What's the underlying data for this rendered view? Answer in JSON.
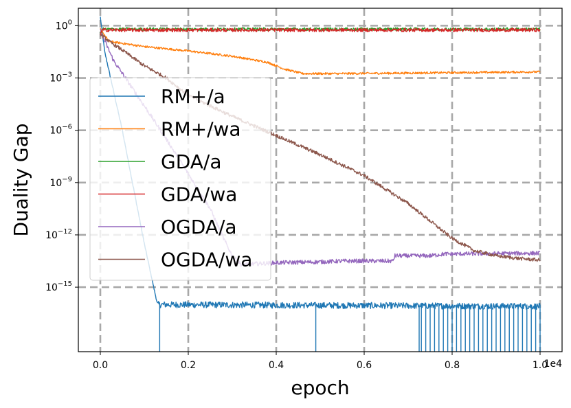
{
  "chart_data": {
    "type": "line",
    "xlabel": "epoch",
    "ylabel": "Duality Gap",
    "x_scale_note": "1e4",
    "xlim": [
      -0.05,
      1.05
    ],
    "ylim_log10": [
      -18.7,
      1.0
    ],
    "x_ticks": [
      0.0,
      0.2,
      0.4,
      0.6,
      0.8,
      1.0
    ],
    "x_tick_labels": [
      "0.0",
      "0.2",
      "0.4",
      "0.6",
      "0.8",
      "1.0"
    ],
    "y_ticks_log10": [
      0,
      -3,
      -6,
      -9,
      -12,
      -15
    ],
    "y_tick_labels": [
      {
        "base": "10",
        "exp": "0"
      },
      {
        "base": "10",
        "exp": "−3"
      },
      {
        "base": "10",
        "exp": "−6"
      },
      {
        "base": "10",
        "exp": "−9"
      },
      {
        "base": "10",
        "exp": "−12"
      },
      {
        "base": "10",
        "exp": "−15"
      }
    ],
    "grid": true,
    "legend_position": "center-left",
    "series": [
      {
        "name": "RM+/a",
        "color": "#1f77b4",
        "noise": 0.18,
        "points": [
          [
            0.0,
            0.5
          ],
          [
            0.01,
            -1.5
          ],
          [
            0.05,
            -6.0
          ],
          [
            0.1,
            -12.5
          ],
          [
            0.13,
            -16.0
          ],
          [
            0.135,
            -16.0
          ],
          [
            1.0,
            -16.1
          ]
        ],
        "dips_x": [
          0.135,
          0.49,
          0.725,
          0.73,
          0.74,
          0.75,
          0.76,
          0.77,
          0.78,
          0.79,
          0.8,
          0.81,
          0.82,
          0.83,
          0.84,
          0.85,
          0.86,
          0.87,
          0.88,
          0.89,
          0.9,
          0.91,
          0.92,
          0.93,
          0.94,
          0.95,
          0.96,
          0.97,
          0.98,
          0.99,
          1.0
        ]
      },
      {
        "name": "RM+/wa",
        "color": "#ff7f0e",
        "noise": 0.06,
        "points": [
          [
            0.0,
            -0.2
          ],
          [
            0.02,
            -0.9
          ],
          [
            0.1,
            -1.2
          ],
          [
            0.2,
            -1.45
          ],
          [
            0.3,
            -1.75
          ],
          [
            0.38,
            -2.1
          ],
          [
            0.42,
            -2.5
          ],
          [
            0.46,
            -2.75
          ],
          [
            0.55,
            -2.75
          ],
          [
            1.0,
            -2.65
          ]
        ]
      },
      {
        "name": "GDA/a",
        "color": "#2ca02c",
        "noise": 0.09,
        "points": [
          [
            0.0,
            -0.5
          ],
          [
            0.005,
            -0.2
          ],
          [
            1.0,
            -0.2
          ]
        ]
      },
      {
        "name": "GDA/wa",
        "color": "#d62728",
        "noise": 0.1,
        "points": [
          [
            0.0,
            -0.5
          ],
          [
            0.005,
            -0.25
          ],
          [
            1.0,
            -0.25
          ]
        ]
      },
      {
        "name": "OGDA/a",
        "color": "#9467bd",
        "noise": 0.12,
        "points": [
          [
            0.0,
            -0.3
          ],
          [
            0.03,
            -2.0
          ],
          [
            0.1,
            -4.6
          ],
          [
            0.15,
            -6.5
          ],
          [
            0.2,
            -8.5
          ],
          [
            0.25,
            -10.5
          ],
          [
            0.28,
            -12.2
          ],
          [
            0.3,
            -13.2
          ],
          [
            0.32,
            -13.7
          ],
          [
            0.4,
            -13.6
          ],
          [
            0.5,
            -13.55
          ],
          [
            0.55,
            -13.5
          ],
          [
            0.665,
            -13.5
          ],
          [
            0.67,
            -13.2
          ],
          [
            0.75,
            -13.2
          ],
          [
            0.78,
            -13.1
          ],
          [
            1.0,
            -13.05
          ]
        ]
      },
      {
        "name": "OGDA/wa",
        "color": "#8c564b",
        "noise": 0.1,
        "points": [
          [
            0.0,
            -0.5
          ],
          [
            0.02,
            -0.9
          ],
          [
            0.05,
            -1.4
          ],
          [
            0.1,
            -2.3
          ],
          [
            0.15,
            -3.0
          ],
          [
            0.2,
            -4.0
          ],
          [
            0.3,
            -5.2
          ],
          [
            0.4,
            -6.3
          ],
          [
            0.5,
            -7.4
          ],
          [
            0.6,
            -8.6
          ],
          [
            0.7,
            -10.2
          ],
          [
            0.75,
            -11.2
          ],
          [
            0.8,
            -12.2
          ],
          [
            0.85,
            -12.9
          ],
          [
            0.9,
            -13.2
          ],
          [
            0.95,
            -13.35
          ],
          [
            1.0,
            -13.45
          ]
        ]
      }
    ]
  }
}
